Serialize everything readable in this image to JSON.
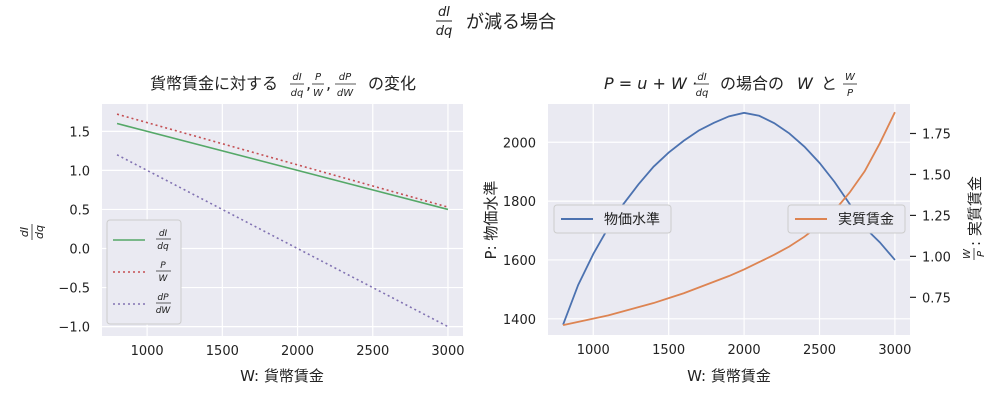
{
  "figure": {
    "suptitle_math": {
      "num": "dI",
      "den": "dq"
    },
    "suptitle_text": "が減る場合"
  },
  "chart_data": [
    {
      "type": "line",
      "title_prefix": "貨幣賃金に対する",
      "title_frac1": {
        "num": "dI",
        "den": "dq"
      },
      "title_frac2": {
        "num": "P",
        "den": "W"
      },
      "title_frac3": {
        "num": "dP",
        "den": "dW"
      },
      "title_suffix": "の変化",
      "xlabel": "W: 貨幣賃金",
      "ylabel_frac": {
        "num": "dI",
        "den": "dq"
      },
      "xlim": [
        700,
        3100
      ],
      "ylim": [
        -1.12,
        1.85
      ],
      "xticks": [
        1000,
        1500,
        2000,
        2500,
        3000
      ],
      "yticks": [
        1.5,
        1.0,
        0.5,
        0.0,
        -0.5,
        -1.0
      ],
      "ytick_labels": [
        "1.5",
        "1.0",
        "0.5",
        "0.0",
        "−0.5",
        "−1.0"
      ],
      "grid": true,
      "legend_position": "lower-left",
      "series": [
        {
          "name_num": "dI",
          "name_den": "dq",
          "color": "#55a868",
          "dash": "solid",
          "x": [
            800,
            3000
          ],
          "y": [
            1.6,
            0.5
          ]
        },
        {
          "name_num": "P",
          "name_den": "W",
          "color": "#c44e52",
          "dash": "dotted",
          "x": [
            800,
            3000
          ],
          "y": [
            1.72,
            0.53
          ]
        },
        {
          "name_num": "dP",
          "name_den": "dW",
          "color": "#8172b2",
          "dash": "dotted",
          "x": [
            800,
            3000
          ],
          "y": [
            1.2,
            -1.0
          ]
        }
      ]
    },
    {
      "type": "line",
      "title_math": "P = u + W ·",
      "title_frac": {
        "num": "dI",
        "den": "dq"
      },
      "title_mid": "の場合の",
      "title_w": "W",
      "title_and": "と",
      "title_frac2": {
        "num": "W",
        "den": "P"
      },
      "xlabel": "W: 貨幣賃金",
      "ylabel_left": "P: 物価水準",
      "ylabel_right_frac": {
        "num": "W",
        "den": "P"
      },
      "ylabel_right_text": ": 実質賃金",
      "xlim": [
        700,
        3100
      ],
      "ylim_left": [
        1345,
        2130
      ],
      "ylim_right": [
        0.52,
        1.93
      ],
      "xticks": [
        1000,
        1500,
        2000,
        2500,
        3000
      ],
      "yticks_left": [
        2000,
        1800,
        1600,
        1400
      ],
      "yticks_right": [
        1.75,
        1.5,
        1.25,
        1.0,
        0.75
      ],
      "ytick_right_labels": [
        "1.75",
        "1.50",
        "1.25",
        "1.00",
        "0.75"
      ],
      "grid": true,
      "series": [
        {
          "name": "物価水準",
          "color": "#4c72b0",
          "axis": "left",
          "x": [
            800,
            900,
            1000,
            1100,
            1200,
            1300,
            1400,
            1500,
            1600,
            1700,
            1800,
            1900,
            2000,
            2100,
            2200,
            2300,
            2400,
            2500,
            2600,
            2700,
            2800,
            2900,
            3000
          ],
          "y": [
            1380,
            1515,
            1620,
            1710,
            1790,
            1857,
            1917,
            1965,
            2005,
            2040,
            2066,
            2088,
            2100,
            2090,
            2065,
            2030,
            1985,
            1930,
            1865,
            1790,
            1710,
            1660,
            1600
          ]
        },
        {
          "name": "実質賃金",
          "color": "#dd8452",
          "axis": "right",
          "x": [
            800,
            900,
            1000,
            1100,
            1200,
            1300,
            1400,
            1500,
            1600,
            1700,
            1800,
            1900,
            2000,
            2100,
            2200,
            2300,
            2400,
            2500,
            2600,
            2700,
            2800,
            2900,
            3000
          ],
          "y": [
            0.58,
            0.6,
            0.62,
            0.64,
            0.665,
            0.69,
            0.715,
            0.745,
            0.775,
            0.81,
            0.845,
            0.88,
            0.92,
            0.965,
            1.01,
            1.06,
            1.12,
            1.19,
            1.28,
            1.39,
            1.52,
            1.69,
            1.88
          ]
        }
      ],
      "legend_left_position": "center-left",
      "legend_right_position": "center-right"
    }
  ]
}
